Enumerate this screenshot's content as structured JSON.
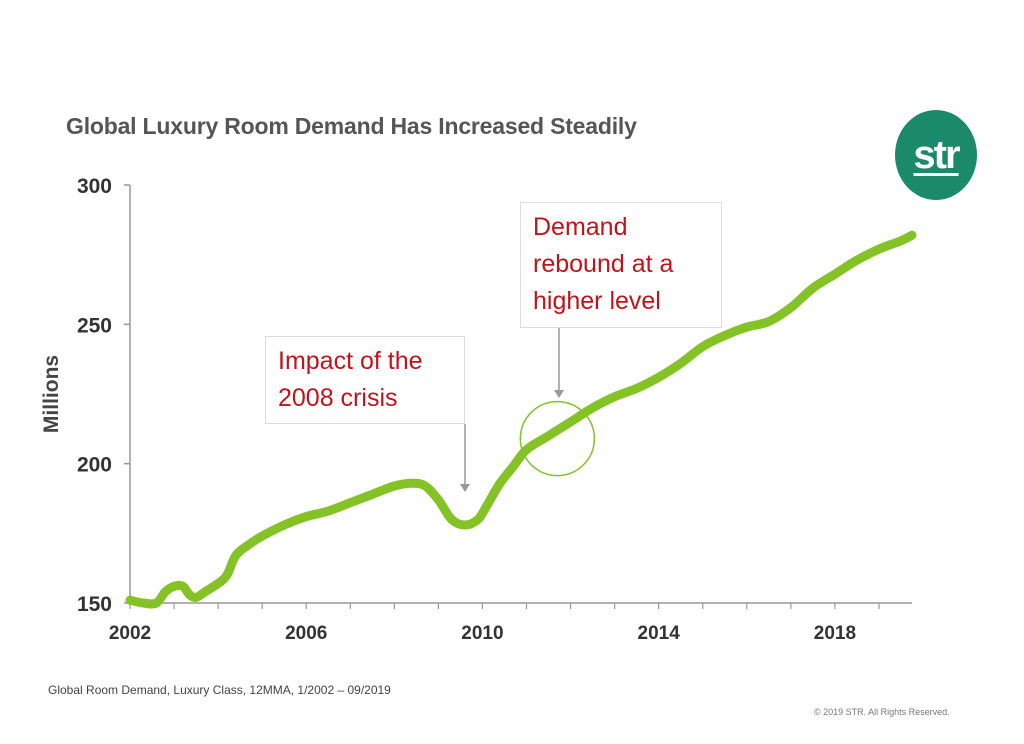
{
  "logo_text": "str",
  "colors": {
    "line": "#84c225",
    "annotation_text": "#c0141c",
    "highlight_circle": "#84c225",
    "logo_bg": "#1a8a6a"
  },
  "annotations": {
    "crisis": "Impact of the 2008 crisis",
    "rebound": "Demand rebound at a higher level"
  },
  "source_note": "Global Room Demand, Luxury Class, 12MMA, 1/2002 – 09/2019",
  "copyright": "© 2019 STR. All Rights Reserved.",
  "chart_data": {
    "type": "line",
    "title": "Global Luxury Room Demand Has Increased Steadily",
    "xlabel": "",
    "ylabel": "Millions",
    "xlim": [
      2002,
      2019.75
    ],
    "ylim": [
      150,
      300
    ],
    "x_ticks": [
      2002,
      2006,
      2010,
      2014,
      2018
    ],
    "y_ticks": [
      150,
      200,
      250,
      300
    ],
    "grid": false,
    "series": [
      {
        "name": "Luxury Room Demand",
        "x": [
          2002.0,
          2002.3,
          2002.6,
          2002.8,
          2003.0,
          2003.2,
          2003.35,
          2003.5,
          2003.7,
          2004.0,
          2004.2,
          2004.4,
          2004.7,
          2005.0,
          2005.5,
          2006.0,
          2006.5,
          2007.0,
          2007.5,
          2008.0,
          2008.4,
          2008.7,
          2009.0,
          2009.3,
          2009.6,
          2009.9,
          2010.1,
          2010.4,
          2010.7,
          2011.0,
          2011.5,
          2012.0,
          2012.5,
          2013.0,
          2013.5,
          2014.0,
          2014.5,
          2015.0,
          2015.5,
          2016.0,
          2016.5,
          2017.0,
          2017.5,
          2018.0,
          2018.5,
          2019.0,
          2019.5,
          2019.75
        ],
        "values": [
          151,
          150,
          150,
          154,
          156,
          156,
          153,
          152,
          154,
          157,
          160,
          167,
          171,
          174,
          178,
          181,
          183,
          186,
          189,
          192,
          193,
          192,
          187,
          180,
          178,
          180,
          185,
          193,
          199,
          205,
          210,
          215,
          220,
          224,
          227,
          231,
          236,
          242,
          246,
          249,
          251,
          256,
          263,
          268,
          273,
          277,
          280,
          282
        ]
      }
    ],
    "highlight": {
      "x": 2011.7,
      "y": 209
    }
  }
}
